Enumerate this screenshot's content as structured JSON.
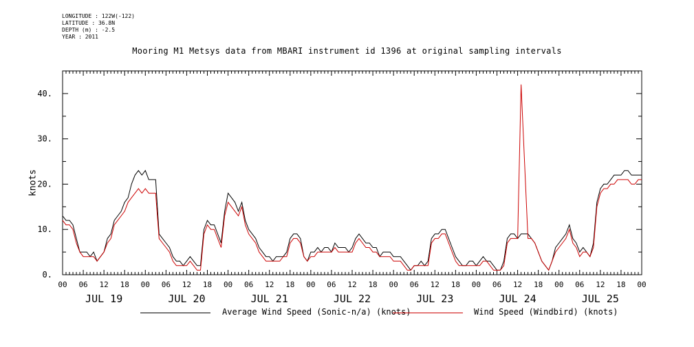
{
  "header": {
    "meta_lines": [
      "LONGITUDE : 122W(-122)",
      "LATITUDE : 36.8N",
      "DEPTH (m) : -2.5",
      "YEAR : 2011"
    ]
  },
  "chart_data": {
    "type": "line",
    "title": "Mooring M1 Metsys data from MBARI instrument id 1396 at original sampling intervals",
    "ylabel": "knots",
    "xlabel": "",
    "ylim": [
      0,
      45
    ],
    "xlim_hours": [
      0,
      168
    ],
    "y_ticks": [
      "0.",
      "10.",
      "20.",
      "30.",
      "40."
    ],
    "hour_tick_labels": [
      "00",
      "06",
      "12",
      "18"
    ],
    "day_labels": [
      "JUL 19",
      "JUL 20",
      "JUL 21",
      "JUL 22",
      "JUL 23",
      "JUL 24",
      "JUL 25"
    ],
    "legend_position": "bottom",
    "series": [
      {
        "name": "Average Wind Speed (Sonic-n/a) (knots)",
        "color": "#000000",
        "hours": [
          0,
          1,
          2,
          3,
          4,
          5,
          6,
          7,
          8,
          9,
          10,
          11,
          12,
          13,
          14,
          15,
          16,
          17,
          18,
          19,
          20,
          21,
          22,
          23,
          24,
          25,
          26,
          27,
          28,
          29,
          30,
          31,
          32,
          33,
          34,
          35,
          36,
          37,
          38,
          39,
          40,
          41,
          42,
          43,
          44,
          45,
          46,
          47,
          48,
          49,
          50,
          51,
          52,
          53,
          54,
          55,
          56,
          57,
          58,
          59,
          60,
          61,
          62,
          63,
          64,
          65,
          66,
          67,
          68,
          69,
          70,
          71,
          72,
          73,
          74,
          75,
          76,
          77,
          78,
          79,
          80,
          81,
          82,
          83,
          84,
          85,
          86,
          87,
          88,
          89,
          90,
          91,
          92,
          93,
          94,
          95,
          96,
          97,
          98,
          99,
          100,
          101,
          102,
          103,
          104,
          105,
          106,
          107,
          108,
          109,
          110,
          111,
          112,
          113,
          114,
          115,
          116,
          117,
          118,
          119,
          120,
          121,
          122,
          123,
          124,
          125,
          126,
          127,
          128,
          129,
          130,
          131,
          132,
          133,
          134,
          135,
          136,
          137,
          138,
          139,
          140,
          141,
          142,
          143,
          144,
          145,
          146,
          147,
          148,
          149,
          150,
          151,
          152,
          153,
          154,
          155,
          156,
          157,
          158,
          159,
          160,
          161,
          162,
          163,
          164,
          165,
          166,
          167,
          168
        ],
        "values": [
          13,
          12,
          12,
          11,
          8,
          5,
          5,
          5,
          4,
          5,
          3,
          4,
          5,
          8,
          9,
          12,
          13,
          14,
          16,
          17,
          20,
          22,
          23,
          22,
          23,
          21,
          21,
          21,
          9,
          8,
          7,
          6,
          4,
          3,
          3,
          2,
          3,
          4,
          3,
          2,
          2,
          10,
          12,
          11,
          11,
          9,
          7,
          14,
          18,
          17,
          16,
          14,
          16,
          12,
          10,
          9,
          8,
          6,
          5,
          4,
          4,
          3,
          4,
          4,
          4,
          5,
          8,
          9,
          9,
          8,
          4,
          3,
          5,
          5,
          6,
          5,
          6,
          6,
          5,
          7,
          6,
          6,
          6,
          5,
          6,
          8,
          9,
          8,
          7,
          7,
          6,
          6,
          4,
          5,
          5,
          5,
          4,
          4,
          4,
          3,
          2,
          1,
          2,
          2,
          3,
          2,
          3,
          8,
          9,
          9,
          10,
          10,
          8,
          6,
          4,
          3,
          2,
          2,
          3,
          3,
          2,
          3,
          4,
          3,
          3,
          2,
          1,
          1,
          3,
          8,
          9,
          9,
          8,
          9,
          9,
          9,
          8,
          7,
          5,
          3,
          2,
          1,
          3,
          6,
          7,
          8,
          9,
          11,
          8,
          7,
          5,
          6,
          5,
          4,
          7,
          16,
          19,
          20,
          20,
          21,
          22,
          22,
          22,
          23,
          23,
          22,
          22,
          22,
          22
        ]
      },
      {
        "name": "Wind Speed (Windbird) (knots)",
        "color": "#cc0000",
        "hours": [
          0,
          1,
          2,
          3,
          4,
          5,
          6,
          7,
          8,
          9,
          10,
          11,
          12,
          13,
          14,
          15,
          16,
          17,
          18,
          19,
          20,
          21,
          22,
          23,
          24,
          25,
          26,
          27,
          28,
          29,
          30,
          31,
          32,
          33,
          34,
          35,
          36,
          37,
          38,
          39,
          40,
          41,
          42,
          43,
          44,
          45,
          46,
          47,
          48,
          49,
          50,
          51,
          52,
          53,
          54,
          55,
          56,
          57,
          58,
          59,
          60,
          61,
          62,
          63,
          64,
          65,
          66,
          67,
          68,
          69,
          70,
          71,
          72,
          73,
          74,
          75,
          76,
          77,
          78,
          79,
          80,
          81,
          82,
          83,
          84,
          85,
          86,
          87,
          88,
          89,
          90,
          91,
          92,
          93,
          94,
          95,
          96,
          97,
          98,
          99,
          100,
          101,
          102,
          103,
          104,
          105,
          106,
          107,
          108,
          109,
          110,
          111,
          112,
          113,
          114,
          115,
          116,
          117,
          118,
          119,
          120,
          121,
          122,
          123,
          124,
          125,
          126,
          127,
          128,
          129,
          130,
          131,
          132,
          133,
          134,
          135,
          136,
          137,
          138,
          139,
          140,
          141,
          142,
          143,
          144,
          145,
          146,
          147,
          148,
          149,
          150,
          151,
          152,
          153,
          154,
          155,
          156,
          157,
          158,
          159,
          160,
          161,
          162,
          163,
          164,
          165,
          166,
          167,
          168
        ],
        "values": [
          12,
          11,
          11,
          10,
          7,
          5,
          4,
          4,
          4,
          4,
          3,
          4,
          5,
          7,
          8,
          11,
          12,
          13,
          14,
          16,
          17,
          18,
          19,
          18,
          19,
          18,
          18,
          18,
          8,
          7,
          6,
          5,
          3,
          2,
          2,
          2,
          2,
          3,
          2,
          1,
          1,
          9,
          11,
          10,
          10,
          8,
          6,
          13,
          16,
          15,
          14,
          13,
          15,
          11,
          9,
          8,
          7,
          5,
          4,
          3,
          3,
          3,
          3,
          3,
          4,
          4,
          7,
          8,
          8,
          7,
          4,
          3,
          4,
          4,
          5,
          5,
          5,
          5,
          5,
          6,
          5,
          5,
          5,
          5,
          5,
          7,
          8,
          7,
          6,
          6,
          5,
          5,
          4,
          4,
          4,
          4,
          3,
          3,
          3,
          2,
          1,
          1,
          2,
          2,
          2,
          2,
          2,
          7,
          8,
          8,
          9,
          9,
          7,
          5,
          3,
          2,
          2,
          2,
          2,
          2,
          2,
          2,
          3,
          3,
          2,
          1,
          1,
          1,
          2,
          7,
          8,
          8,
          8,
          42,
          25,
          8,
          8,
          7,
          5,
          3,
          2,
          1,
          3,
          5,
          6,
          7,
          8,
          10,
          7,
          6,
          4,
          5,
          5,
          4,
          6,
          15,
          18,
          19,
          19,
          20,
          20,
          21,
          21,
          21,
          21,
          20,
          20,
          21,
          21
        ]
      }
    ]
  }
}
